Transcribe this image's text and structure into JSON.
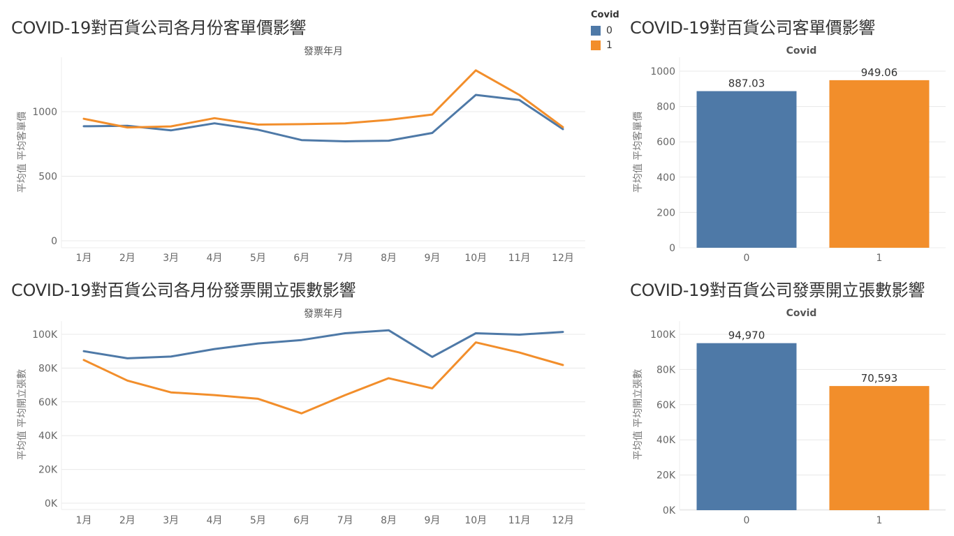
{
  "colors": {
    "series0": "#4e79a7",
    "series1": "#f28e2b",
    "grid": "#e8e8e8",
    "axis_text": "#666666"
  },
  "legend": {
    "title": "Covid",
    "items": [
      {
        "label": "0",
        "color": "#4e79a7"
      },
      {
        "label": "1",
        "color": "#f28e2b"
      }
    ]
  },
  "chart_data": [
    {
      "id": "line1",
      "type": "line",
      "title": "COVID-19對百貨公司各月份客單價影響",
      "xlabel": "發票年月",
      "ylabel": "平均值 平均客單價",
      "categories": [
        "1月",
        "2月",
        "3月",
        "4月",
        "5月",
        "6月",
        "7月",
        "8月",
        "9月",
        "10月",
        "11月",
        "12月"
      ],
      "ylim": [
        0,
        1400
      ],
      "yticks": [
        0,
        500,
        1000
      ],
      "ytick_labels": [
        "0",
        "500",
        "1000"
      ],
      "series": [
        {
          "name": "0",
          "color": "#4e79a7",
          "values": [
            887,
            890,
            855,
            910,
            860,
            780,
            770,
            775,
            835,
            1130,
            1090,
            865
          ]
        },
        {
          "name": "1",
          "color": "#f28e2b",
          "values": [
            945,
            878,
            886,
            950,
            900,
            903,
            910,
            937,
            978,
            1320,
            1130,
            880
          ]
        }
      ]
    },
    {
      "id": "bar1",
      "type": "bar",
      "title": "COVID-19對百貨公司客單價影響",
      "xlabel": "Covid",
      "ylabel": "平均值 平均客單價",
      "categories": [
        "0",
        "1"
      ],
      "values": [
        887.03,
        949.06
      ],
      "value_labels": [
        "887.03",
        "949.06"
      ],
      "colors": [
        "#4e79a7",
        "#f28e2b"
      ],
      "ylim": [
        0,
        1000
      ],
      "yticks": [
        0,
        200,
        400,
        600,
        800,
        1000
      ],
      "ytick_labels": [
        "0",
        "200",
        "400",
        "600",
        "800",
        "1000"
      ]
    },
    {
      "id": "line2",
      "type": "line",
      "title": "COVID-19對百貨公司各月份發票開立張數影響",
      "xlabel": "發票年月",
      "ylabel": "平均值 平均開立張數",
      "categories": [
        "1月",
        "2月",
        "3月",
        "4月",
        "5月",
        "6月",
        "7月",
        "8月",
        "9月",
        "10月",
        "11月",
        "12月"
      ],
      "ylim": [
        0,
        100000
      ],
      "yticks": [
        0,
        20000,
        40000,
        60000,
        80000,
        100000
      ],
      "ytick_labels": [
        "0K",
        "20K",
        "40K",
        "60K",
        "80K",
        "100K"
      ],
      "series": [
        {
          "name": "0",
          "color": "#4e79a7",
          "values": [
            90000,
            85800,
            86800,
            91300,
            94600,
            96600,
            100600,
            102400,
            86600,
            100600,
            99800,
            101400
          ]
        },
        {
          "name": "1",
          "color": "#f28e2b",
          "values": [
            84800,
            72600,
            65600,
            64000,
            61800,
            53200,
            64000,
            74000,
            68000,
            95200,
            89200,
            81800
          ]
        }
      ]
    },
    {
      "id": "bar2",
      "type": "bar",
      "title": "COVID-19對百貨公司發票開立張數影響",
      "xlabel": "Covid",
      "ylabel": "平均值 平均開立張數",
      "categories": [
        "0",
        "1"
      ],
      "values": [
        94970,
        70593
      ],
      "value_labels": [
        "94,970",
        "70,593"
      ],
      "colors": [
        "#4e79a7",
        "#f28e2b"
      ],
      "ylim": [
        0,
        100000
      ],
      "yticks": [
        0,
        20000,
        40000,
        60000,
        80000,
        100000
      ],
      "ytick_labels": [
        "0K",
        "20K",
        "40K",
        "60K",
        "80K",
        "100K"
      ]
    }
  ]
}
